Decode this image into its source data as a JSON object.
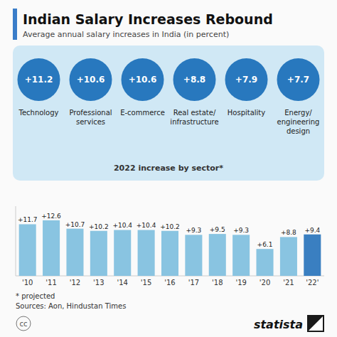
{
  "chart_data": [
    {
      "type": "bar",
      "title": "Indian Salary Increases Rebound",
      "subtitle": "Average annual salary increases in India (in percent)",
      "categories": [
        "'10",
        "'11",
        "'12",
        "'13",
        "'14",
        "'15",
        "'16",
        "'17",
        "'18",
        "'19",
        "'20",
        "'21",
        "'22'"
      ],
      "values": [
        11.7,
        12.6,
        10.7,
        10.2,
        10.4,
        10.4,
        10.2,
        9.3,
        9.5,
        9.3,
        6.1,
        8.8,
        9.4
      ],
      "value_labels": [
        "+11.7",
        "+12.6",
        "+10.7",
        "+10.2",
        "+10.4",
        "+10.4",
        "+10.2",
        "+9.3",
        "+9.5",
        "+9.3",
        "+6.1",
        "+8.8",
        "+9.4"
      ],
      "colors": [
        "#89C4E1",
        "#89C4E1",
        "#89C4E1",
        "#89C4E1",
        "#89C4E1",
        "#89C4E1",
        "#89C4E1",
        "#89C4E1",
        "#89C4E1",
        "#89C4E1",
        "#89C4E1",
        "#89C4E1",
        "#3A7FC1"
      ],
      "ylim": [
        0,
        15.8
      ],
      "data_labels": true,
      "tick_labels": "x",
      "grid": false,
      "annotations": [
        "* projected",
        "Sources: Aon, Hindustan Times",
        "cc",
        "statista"
      ]
    },
    {
      "type": "circles",
      "title": "2022 increase by sector*",
      "categories": [
        "Technology",
        "Professional\nservices",
        "E-commerce",
        "Real estate/\ninfrastructure",
        "Hospitality",
        "Energy/\nengineering\ndesign"
      ],
      "values": [
        11.2,
        10.6,
        10.6,
        8.8,
        7.9,
        7.7
      ],
      "value_labels": [
        "+11.2",
        "+10.6",
        "+10.6",
        "+8.8",
        "+7.9",
        "+7.7"
      ],
      "color": "#2878BE",
      "data_labels": true
    }
  ]
}
